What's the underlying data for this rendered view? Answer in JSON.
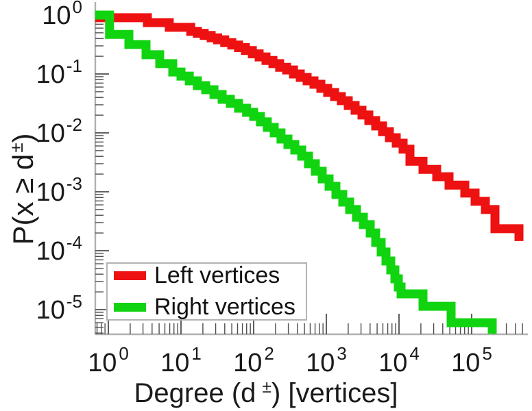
{
  "figure": {
    "xlabel": {
      "base": "Degree (d",
      "sup": "±",
      "close": ") [vertices]"
    },
    "ylabel": {
      "base": "P(x ≥ d",
      "sup": "±",
      "close": ")"
    },
    "legend": {
      "items": [
        {
          "label": "Left vertices",
          "color": "#ee1111"
        },
        {
          "label": "Right vertices",
          "color": "#11d411"
        }
      ]
    }
  },
  "chart_data": {
    "type": "line",
    "subtype": "ccdf-staircase",
    "title": "",
    "xlabel": "Degree (d±) [vertices]",
    "ylabel": "P(x ≥ d±)",
    "x_scale": "log",
    "y_scale": "log",
    "xlim": [
      0.66,
      530000
    ],
    "ylim": [
      3.8e-06,
      1.66
    ],
    "x_tick_exponents": [
      0,
      1,
      2,
      3,
      4,
      5
    ],
    "y_tick_exponents": [
      0,
      -1,
      -2,
      -3,
      -4,
      -5
    ],
    "tick_mantissa": "10",
    "grid": false,
    "legend_position": "lower left",
    "series": [
      {
        "name": "Left vertices",
        "color": "#ee1111",
        "style": "step-after",
        "line_width": 13,
        "points": [
          [
            0.66,
            0.9
          ],
          [
            3.45,
            0.745
          ],
          [
            6.9,
            0.62
          ],
          [
            13.6,
            0.53
          ],
          [
            16.8,
            0.49
          ],
          [
            20.9,
            0.45
          ],
          [
            26,
            0.41
          ],
          [
            32,
            0.38
          ],
          [
            40,
            0.34
          ],
          [
            50,
            0.31
          ],
          [
            62,
            0.28
          ],
          [
            77,
            0.25
          ],
          [
            96,
            0.22
          ],
          [
            119,
            0.195
          ],
          [
            148,
            0.17
          ],
          [
            184,
            0.15
          ],
          [
            228,
            0.13
          ],
          [
            284,
            0.117
          ],
          [
            353,
            0.1
          ],
          [
            438,
            0.0875
          ],
          [
            544,
            0.0765
          ],
          [
            677,
            0.067
          ],
          [
            840,
            0.057
          ],
          [
            1045,
            0.0485
          ],
          [
            1300,
            0.0413
          ],
          [
            1610,
            0.0352
          ],
          [
            2005,
            0.0292
          ],
          [
            2490,
            0.0242
          ],
          [
            3095,
            0.0201
          ],
          [
            3845,
            0.0162
          ],
          [
            4777,
            0.0131
          ],
          [
            5935,
            0.0105
          ],
          [
            7375,
            0.0083
          ],
          [
            9165,
            0.0067
          ],
          [
            11390,
            0.0053
          ],
          [
            14160,
            0.0033
          ],
          [
            21390,
            0.0024
          ],
          [
            33030,
            0.0018
          ],
          [
            48840,
            0.0013
          ],
          [
            80500,
            0.00095
          ],
          [
            111500,
            0.00069
          ],
          [
            154500,
            0.0005
          ],
          [
            209300,
            0.000236
          ],
          [
            447700,
            0.000146
          ]
        ]
      },
      {
        "name": "Right vertices",
        "color": "#11d411",
        "style": "step-after",
        "line_width": 13,
        "points": [
          [
            0.66,
            1.0
          ],
          [
            1.04,
            0.47
          ],
          [
            1.92,
            0.316
          ],
          [
            3.3,
            0.212
          ],
          [
            5.1,
            0.15
          ],
          [
            7.7,
            0.108
          ],
          [
            10,
            0.092
          ],
          [
            13,
            0.0765
          ],
          [
            16.8,
            0.0634
          ],
          [
            21.9,
            0.054
          ],
          [
            28.4,
            0.0448
          ],
          [
            36.8,
            0.0371
          ],
          [
            47.8,
            0.0316
          ],
          [
            62,
            0.0262
          ],
          [
            80,
            0.0223
          ],
          [
            100,
            0.019
          ],
          [
            124,
            0.0154
          ],
          [
            154,
            0.0124
          ],
          [
            192,
            0.01
          ],
          [
            238,
            0.00786
          ],
          [
            296,
            0.00634
          ],
          [
            368,
            0.00512
          ],
          [
            458,
            0.00402
          ],
          [
            569,
            0.003
          ],
          [
            706,
            0.00223
          ],
          [
            878,
            0.00166
          ],
          [
            1090,
            0.00124
          ],
          [
            1355,
            0.0009
          ],
          [
            1685,
            0.00067
          ],
          [
            2093,
            0.0005
          ],
          [
            2600,
            0.00037
          ],
          [
            3233,
            0.000277
          ],
          [
            4016,
            0.0002
          ],
          [
            4777,
            0.000138
          ],
          [
            5685,
            9.5e-05
          ],
          [
            6620,
            6.7e-05
          ],
          [
            7705,
            4.72e-05
          ],
          [
            8777,
            3.34e-05
          ],
          [
            9785,
            2.42e-05
          ],
          [
            10670,
            1.85e-05
          ],
          [
            21390,
            1.14e-05
          ],
          [
            52120,
            6e-06
          ],
          [
            191900,
            3.9e-06
          ]
        ]
      }
    ]
  }
}
